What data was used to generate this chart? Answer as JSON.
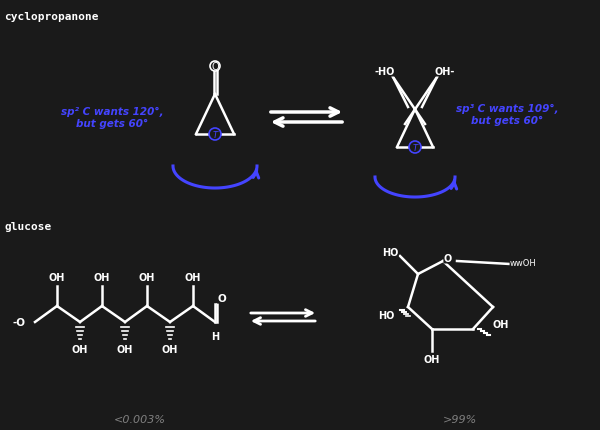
{
  "bg_color": "#1a1a1a",
  "fg_color": "#ffffff",
  "blue_color": "#4444ff",
  "title_cyclopropanone": "cyclopropanone",
  "title_glucose": "glucose",
  "label_left_top": "sp² C wants 120°,\nbut gets 60°",
  "label_right_top": "sp³ C wants 109°,\nbut gets 60°",
  "label_left_pct": "<0.003%",
  "label_right_pct": ">99%"
}
